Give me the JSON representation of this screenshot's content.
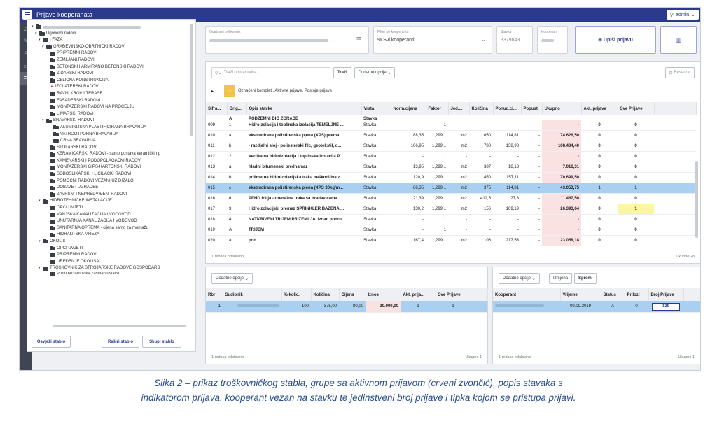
{
  "app_title": "Prijave kooperanata",
  "user": "admin",
  "sidebar_icons": [
    "bell-icon",
    "pin-icon",
    "users-icon",
    "book-icon",
    "list-icon"
  ],
  "tree": {
    "nodes": [
      {
        "level": 1,
        "arrow": "▾",
        "label": "",
        "blurred": true
      },
      {
        "level": 2,
        "arrow": "▾",
        "label": "Ugovorni radovi"
      },
      {
        "level": 3,
        "arrow": "▾",
        "label": "I FAZA"
      },
      {
        "level": 4,
        "arrow": "▾",
        "label": "GRAĐEVINSKO-OBRTNIČKI RADOVI"
      },
      {
        "level": 5,
        "label": "PRIPREMNI RADOVI"
      },
      {
        "level": 5,
        "label": "ZEMLJANI RADOVI"
      },
      {
        "level": 5,
        "label": "BETONSKI I ARMIRANO BETONSKI RADOVI"
      },
      {
        "level": 5,
        "label": "ZIDARSKI RADOVI"
      },
      {
        "level": 5,
        "label": "ČELIČNA KONSTRUKCIJA"
      },
      {
        "level": 5,
        "label": "IZOLATERSKI RADOVI",
        "bell": true
      },
      {
        "level": 5,
        "label": "RAVNI KROV I TERASE"
      },
      {
        "level": 5,
        "label": "FASADERSKI RADOVI"
      },
      {
        "level": 5,
        "label": "MONTAŽERSKI RADOVI NA PROČELJU"
      },
      {
        "level": 5,
        "label": "LIMARSKI RADOVI"
      },
      {
        "level": 4,
        "arrow": "▾",
        "label": "BRAVARSKI RADOVI"
      },
      {
        "level": 6,
        "label": "ALUMINIJSKA PLASTIFICIRANA BRAVARIJA"
      },
      {
        "level": 6,
        "label": "VATROOTPORNA BRAVARIJA"
      },
      {
        "level": 6,
        "label": "CRNA BRAVARIJA"
      },
      {
        "level": 5,
        "label": "STOLARSKI RADOVI"
      },
      {
        "level": 5,
        "label": "KERAMIČARSKI RADOVI - samo postava keramičkih p"
      },
      {
        "level": 5,
        "label": "KAMENARSKI I PODOPOLAGAČKI RADOVI"
      },
      {
        "level": 5,
        "label": "MONTAŽERSKI GIPS-KARTONSKI RADOVI"
      },
      {
        "level": 5,
        "label": "SOBOSLIKARSKI I LIČILAČKI RADOVI"
      },
      {
        "level": 5,
        "label": "POMOĆNI RADOVI VEZANI UZ DIZALO"
      },
      {
        "level": 5,
        "label": "DOBAVE I UGRADBE"
      },
      {
        "level": 5,
        "label": "ZAVRŠNI I NEPREDVIĐENI RADOVI"
      },
      {
        "level": 3,
        "arrow": "▾",
        "label": "HIDROTEHNIČKE INSTALACIJE"
      },
      {
        "level": 5,
        "label": "OPĆI UVJETI:"
      },
      {
        "level": 5,
        "label": "VANJSKA KANALIZACIJA I VODOVOD"
      },
      {
        "level": 5,
        "label": "UNUTARNJA KANALIZACIJA I VODOVOD"
      },
      {
        "level": 5,
        "label": "SANITARNA OPREMA - cijena samo za montažu"
      },
      {
        "level": 5,
        "label": "HIDRANTSKA MREŽA"
      },
      {
        "level": 3,
        "arrow": "▾",
        "label": "OKOLIŠ"
      },
      {
        "level": 5,
        "label": "OPĆI UVJETI:"
      },
      {
        "level": 5,
        "label": "PRIPREMNI RADOVI"
      },
      {
        "level": 5,
        "label": "UREĐENJE OKOLIŠA"
      },
      {
        "level": 3,
        "arrow": "▾",
        "label": "TROŠKOVNIK ZA STROJARSKE RADOVE GOSPODARS"
      },
      {
        "level": 5,
        "label": "Ponuđač tehnička zaštita sustava",
        "partial": true
      }
    ],
    "buttons": {
      "refresh": "Osvježi stablo",
      "expand": "Raširi stablo",
      "collapse": "Skupi stablo"
    }
  },
  "filters": {
    "troskovnik": {
      "label": "Odabrani troškovnik",
      "value": ""
    },
    "kooperant": {
      "label": "Filter po kooperantu",
      "value": "% Svi kooperanti"
    },
    "stavka": {
      "label": "Stavka",
      "value": "3379843"
    },
    "kooperant_id": {
      "label": "Kooperant",
      "value": ""
    },
    "upisi_label": "Upiši prijavu"
  },
  "items": {
    "search_placeholder": "Traži unutar retka",
    "search_btn": "Traži",
    "options_btn": "Dodatne opcije",
    "reset_btn": "Resetiraj",
    "chip_text": "Označeni kompleti, Aktivne prijave, Postoje prijave",
    "columns": [
      "Šifra...",
      "Orig...",
      "Opis stavke",
      "Vrsta",
      "Norm.cijena",
      "Faktor",
      "Jed....",
      "Količina",
      "Ponud.ci...",
      "Popust",
      "Ukupno",
      "Akt. prijave",
      "Sve Prijave"
    ],
    "partial_row": [
      "",
      "A",
      "PODZEMNI DIO ZGRADE",
      "Stavka"
    ],
    "rows": [
      {
        "sifra": "009",
        "orig": "1",
        "opis": "Hidroizolacija i toplinska izolacija TEMELJNE ...",
        "vrsta": "Stavka",
        "norm": "-",
        "faktor": "1",
        "jed": "-",
        "kol": "-",
        "ponud": "-",
        "popust": "-",
        "ukupno": "-",
        "akt": "0",
        "sve": "0"
      },
      {
        "sifra": "010",
        "orig": "a",
        "opis": "ekstrudirana polistirenska pjena (XPS) prema ...",
        "vrsta": "Stavka",
        "norm": "88,35",
        "faktor": "1,299...",
        "jed": "m2",
        "kol": "650",
        "ponud": "114,81",
        "popust": "-",
        "ukupno": "74.626,50",
        "akt": "0",
        "sve": "0"
      },
      {
        "sifra": "011",
        "orig": "b",
        "opis": "- razdjelni sloj - poliesterski filc, geotekstil, d...",
        "vrsta": "Stavka",
        "norm": "106,95",
        "faktor": "1,299...",
        "jed": "m2",
        "kol": "780",
        "ponud": "138,98",
        "popust": "-",
        "ukupno": "108.404,40",
        "akt": "0",
        "sve": "0"
      },
      {
        "sifra": "012",
        "orig": "2",
        "opis": "Vertikalna hidroizolacija i toplinska izolacija P...",
        "vrsta": "Stavka",
        "norm": "-",
        "faktor": "1",
        "jed": "-",
        "kol": "-",
        "ponud": "-",
        "popust": "-",
        "ukupno": "-",
        "akt": "0",
        "sve": "0"
      },
      {
        "sifra": "013",
        "orig": "a",
        "opis": "hladni bitumenski prednamaz",
        "vrsta": "Stavka",
        "norm": "13,95",
        "faktor": "1,299...",
        "jed": "m2",
        "kol": "387",
        "ponud": "18,13",
        "popust": "-",
        "ukupno": "7.016,31",
        "akt": "0",
        "sve": "0"
      },
      {
        "sifra": "014",
        "orig": "b",
        "opis": "polimerna hidroizolacijska traka neškodljiva z...",
        "vrsta": "Stavka",
        "norm": "120,9",
        "faktor": "1,299...",
        "jed": "m2",
        "kol": "450",
        "ponud": "157,11",
        "popust": "-",
        "ukupno": "70.699,50",
        "akt": "0",
        "sve": "0"
      },
      {
        "sifra": "015",
        "orig": "c",
        "opis": "ekstrudirana polistirenska pjena (XPS 30kg/m...",
        "vrsta": "Stavka",
        "norm": "88,35",
        "faktor": "1,299...",
        "jed": "m2",
        "kol": "375",
        "ponud": "114,81",
        "popust": "-",
        "ukupno": "43.053,75",
        "akt": "1",
        "sve": "1",
        "sel": true
      },
      {
        "sifra": "016",
        "orig": "d",
        "opis": "PEHD folija - drenažna traka sa bradavicama ...",
        "vrsta": "Stavka",
        "norm": "21,39",
        "faktor": "1,299...",
        "jed": "m2",
        "kol": "412,5",
        "ponud": "27,8",
        "popust": "-",
        "ukupno": "11.467,50",
        "akt": "0",
        "sve": "0"
      },
      {
        "sifra": "017",
        "orig": "3",
        "opis": "Hidroizolacijski premaz SPRINKLER BAZENA ...",
        "vrsta": "Stavka",
        "norm": "130,2",
        "faktor": "1,299...",
        "jed": "m2",
        "kol": "156",
        "ponud": "169,19",
        "popust": "-",
        "ukupno": "26.393,64",
        "akt": "0",
        "sve": "1"
      },
      {
        "sifra": "018",
        "orig": "4",
        "opis": "NATKRIVENI TRIJEM PRIZEMLJA, iznad podru...",
        "vrsta": "Stavka",
        "norm": "-",
        "faktor": "1",
        "jed": "-",
        "kol": "-",
        "ponud": "-",
        "popust": "-",
        "ukupno": "-",
        "akt": "0",
        "sve": "0"
      },
      {
        "sifra": "019",
        "orig": "A",
        "opis": "TRIJEM",
        "vrsta": "Stavka",
        "norm": "-",
        "faktor": "1",
        "jed": "-",
        "kol": "-",
        "ponud": "-",
        "popust": "-",
        "ukupno": "-",
        "akt": "0",
        "sve": "0"
      },
      {
        "sifra": "020",
        "orig": "a",
        "opis": "pod",
        "vrsta": "Stavka",
        "norm": "167,4",
        "faktor": "1,299...",
        "jed": "m2",
        "kol": "106",
        "ponud": "217,53",
        "popust": "-",
        "ukupno": "23.058,18",
        "akt": "0",
        "sve": "0"
      }
    ],
    "footer_left": "1 redaka odabrano",
    "footer_right": "Ukupno 28"
  },
  "participants": {
    "options_btn": "Dodatne opcije",
    "columns": [
      "Rbr",
      "Sudionik",
      "% kolic.",
      "Količina",
      "Cijena",
      "Iznos",
      "Akt. prija...",
      "Sve Prijave"
    ],
    "rows": [
      {
        "rbr": "1",
        "sudionik": "",
        "kolic": "100",
        "kolicina": "375,00",
        "cijena": "80,00",
        "iznos": "30.000,00",
        "akt": "1",
        "sve": "1"
      }
    ],
    "footer_left": "1 redaka odabrano",
    "footer_right": "Ukupno 1"
  },
  "cooperants": {
    "options_btn": "Dodatne opcije",
    "edit_btn": "Izmjena",
    "save_btn": "Spremi",
    "columns": [
      "Kooperant",
      "Vrijeme",
      "Status",
      "Prilozi",
      "Broj Prijave"
    ],
    "rows": [
      {
        "kooperant": "",
        "vrijeme": "09.09.2019",
        "status": "A",
        "prilozi": "0",
        "broj": "139"
      }
    ],
    "footer_left": "1 redaka odabrano",
    "footer_right": "Ukupno 1"
  },
  "caption": {
    "line1": "Slika 2 – prikaz troškovničkog stabla, grupe sa aktivnom prijavom (crveni zvončić), popis stavaka s",
    "line2": "indikatorom prijava, kooperant vezan na stavku te jedinstveni broj prijave i tipka kojom se pristupa prijavi."
  }
}
